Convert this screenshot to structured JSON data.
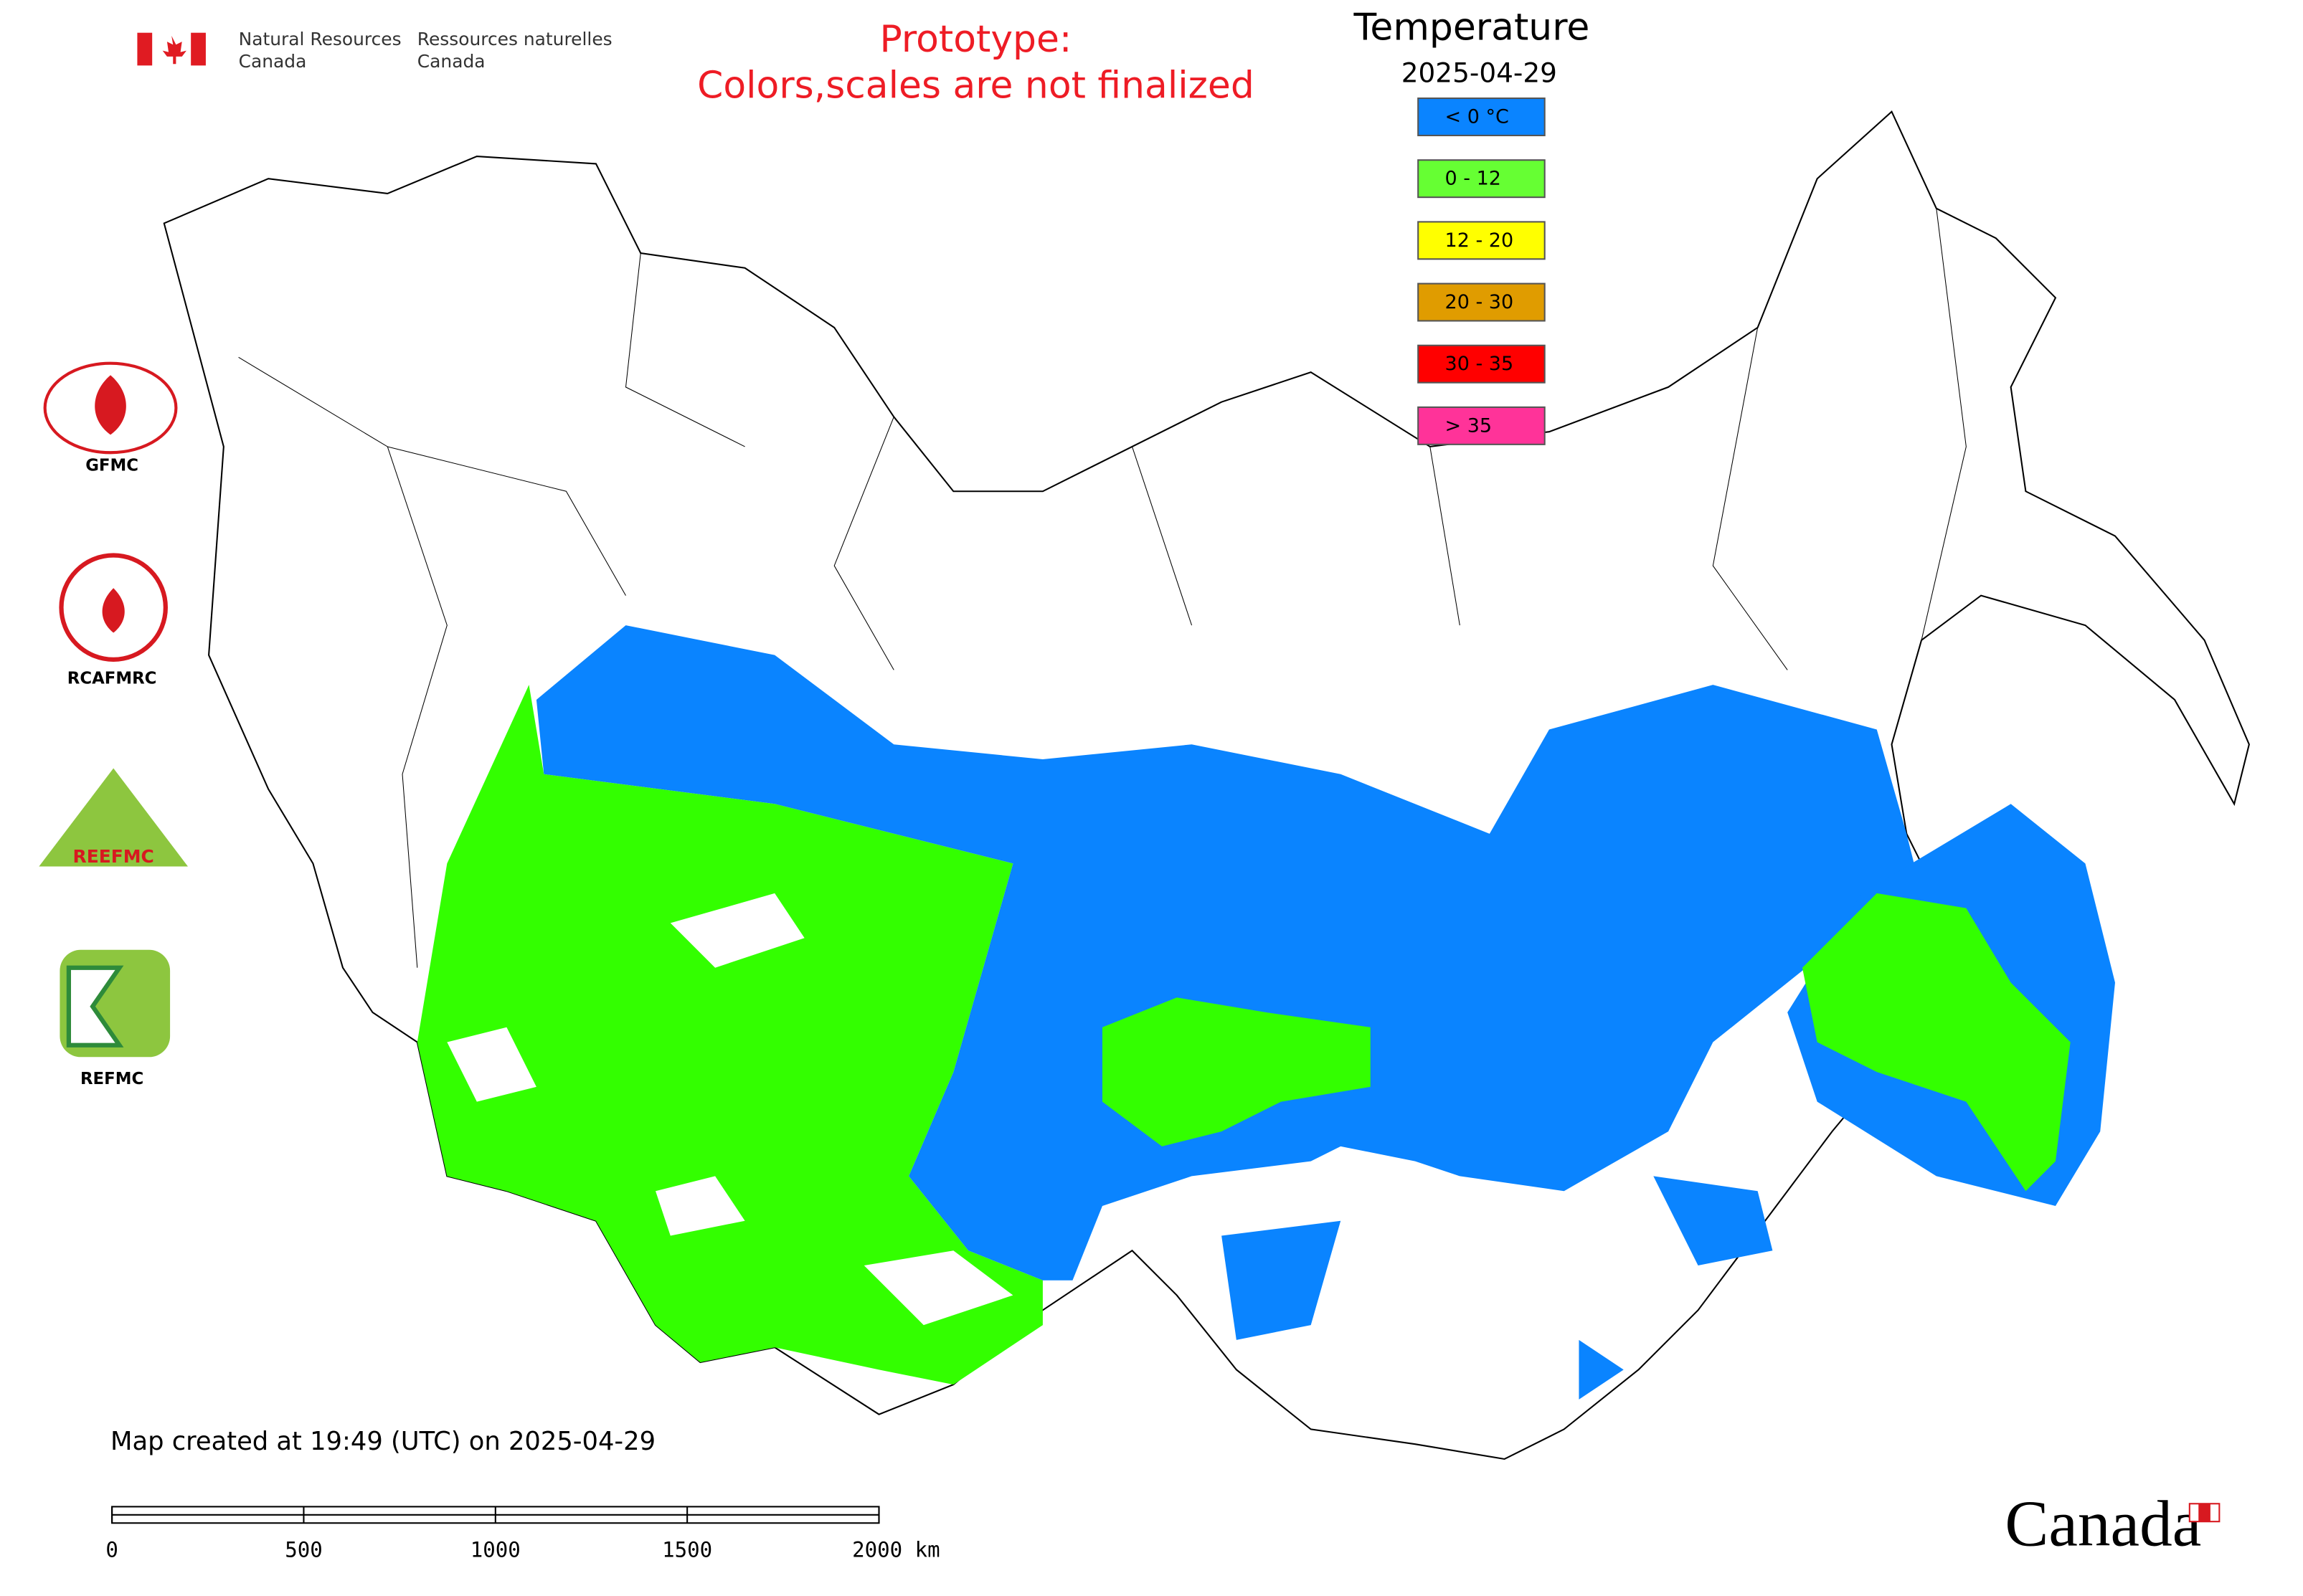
{
  "header": {
    "agency_en": [
      "Natural Resources",
      "Canada"
    ],
    "agency_fr": [
      "Ressources naturelles",
      "Canada"
    ],
    "notice": [
      "Prototype:",
      "Colors,scales are not finalized"
    ]
  },
  "legend": {
    "title": "Temperature",
    "date": "2025-04-29",
    "items": [
      {
        "label": "< 0 °C",
        "color": "#0a84ff"
      },
      {
        "label": "0 - 12",
        "color": "#66ff33"
      },
      {
        "label": "12 - 20",
        "color": "#ffff00"
      },
      {
        "label": "20 - 30",
        "color": "#e09c00"
      },
      {
        "label": "30 - 35",
        "color": "#ff0000"
      },
      {
        "label": "> 35",
        "color": "#ff3399"
      }
    ]
  },
  "logos": [
    "GFMC",
    "RCAFMRC",
    "REFMC"
  ],
  "footer": {
    "created": "Map created at 19:49 (UTC) on 2025-04-29",
    "wordmark": "Canada"
  },
  "scale_bar": {
    "labels": [
      "0",
      "500",
      "1000",
      "1500",
      "2000 km"
    ]
  }
}
